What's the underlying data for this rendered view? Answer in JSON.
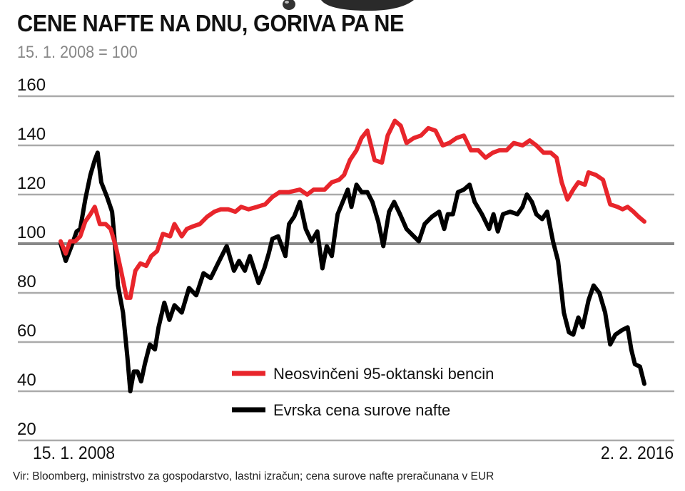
{
  "header": {
    "title": "CENE NAFTE NA DNU, GORIVA PA NE",
    "subtitle": "15. 1. 2008 = 100"
  },
  "footer": {
    "source": "Vir: Bloomberg, ministrstvo za gospodarstvo, lastni izračun; cena surove nafte preračunana v EUR"
  },
  "chart_data": {
    "type": "line",
    "title": "CENE NAFTE NA DNU, GORIVA PA NE",
    "subtitle": "15. 1. 2008 = 100",
    "x_tick_labels": [
      "15. 1. 2008",
      "2. 2. 2016"
    ],
    "xlim": [
      2008.04,
      2016.09
    ],
    "ylim": [
      20,
      160
    ],
    "y_ticks": [
      20,
      40,
      60,
      80,
      100,
      120,
      140,
      160
    ],
    "grid": "horizontal",
    "legend_placement": "bottom-center",
    "series": [
      {
        "name": "Neosvinčeni 95-oktanski bencin",
        "color": "#e8252b",
        "x": [
          2008.04,
          2008.11,
          2008.17,
          2008.24,
          2008.31,
          2008.38,
          2008.45,
          2008.51,
          2008.58,
          2008.66,
          2008.73,
          2008.8,
          2008.88,
          2008.95,
          2009.0,
          2009.07,
          2009.14,
          2009.22,
          2009.29,
          2009.37,
          2009.45,
          2009.55,
          2009.61,
          2009.71,
          2009.78,
          2009.86,
          2009.96,
          2010.06,
          2010.16,
          2010.25,
          2010.35,
          2010.45,
          2010.53,
          2010.63,
          2010.75,
          2010.86,
          2010.96,
          2011.06,
          2011.19,
          2011.34,
          2011.44,
          2011.53,
          2011.68,
          2011.78,
          2011.88,
          2011.95,
          2012.03,
          2012.12,
          2012.19,
          2012.27,
          2012.37,
          2012.47,
          2012.55,
          2012.65,
          2012.73,
          2012.81,
          2012.91,
          2013.01,
          2013.11,
          2013.21,
          2013.31,
          2013.4,
          2013.5,
          2013.6,
          2013.7,
          2013.8,
          2013.9,
          2014.0,
          2014.09,
          2014.19,
          2014.29,
          2014.41,
          2014.51,
          2014.6,
          2014.7,
          2014.8,
          2014.88,
          2014.95,
          2015.03,
          2015.11,
          2015.18,
          2015.27,
          2015.32,
          2015.42,
          2015.52,
          2015.62,
          2015.72,
          2015.79,
          2015.86,
          2015.94,
          2016.01,
          2016.09
        ],
        "values": [
          101,
          96,
          101,
          101,
          103,
          109,
          112,
          115,
          108,
          108,
          106,
          99,
          88,
          78,
          78,
          89,
          92,
          91,
          95,
          97,
          104,
          103,
          108,
          103,
          106,
          107,
          108,
          111,
          113,
          114,
          114,
          113,
          115,
          114,
          115,
          116,
          119,
          121,
          121,
          122,
          120,
          122,
          122,
          125,
          126,
          128,
          134,
          138,
          143,
          146,
          134,
          133,
          144,
          150,
          148,
          141,
          143,
          144,
          147,
          146,
          140,
          141,
          143,
          144,
          138,
          138,
          135,
          137,
          138,
          138,
          141,
          140,
          142,
          140,
          137,
          137,
          135,
          125,
          118,
          122,
          125,
          124,
          129,
          128,
          126,
          116,
          115,
          114,
          115,
          113,
          111,
          109
        ]
      },
      {
        "name": "Evrska cena surove nafte",
        "color": "#000000",
        "x": [
          2008.04,
          2008.11,
          2008.19,
          2008.26,
          2008.31,
          2008.38,
          2008.45,
          2008.51,
          2008.55,
          2008.6,
          2008.68,
          2008.75,
          2008.78,
          2008.83,
          2008.9,
          2008.96,
          2009.0,
          2009.05,
          2009.1,
          2009.15,
          2009.2,
          2009.27,
          2009.34,
          2009.39,
          2009.47,
          2009.54,
          2009.61,
          2009.71,
          2009.81,
          2009.91,
          2010.01,
          2010.11,
          2010.21,
          2010.33,
          2010.43,
          2010.5,
          2010.58,
          2010.65,
          2010.77,
          2010.85,
          2010.91,
          2010.96,
          2011.04,
          2011.14,
          2011.19,
          2011.26,
          2011.34,
          2011.42,
          2011.5,
          2011.58,
          2011.65,
          2011.71,
          2011.78,
          2011.86,
          2011.93,
          2012.0,
          2012.05,
          2012.12,
          2012.19,
          2012.27,
          2012.34,
          2012.42,
          2012.49,
          2012.57,
          2012.64,
          2012.72,
          2012.81,
          2012.91,
          2012.98,
          2013.06,
          2013.16,
          2013.26,
          2013.33,
          2013.38,
          2013.45,
          2013.52,
          2013.6,
          2013.68,
          2013.75,
          2013.85,
          2013.95,
          2014.01,
          2014.07,
          2014.14,
          2014.24,
          2014.34,
          2014.41,
          2014.47,
          2014.54,
          2014.6,
          2014.68,
          2014.75,
          2014.83,
          2014.9,
          2014.98,
          2015.05,
          2015.11,
          2015.18,
          2015.24,
          2015.32,
          2015.39,
          2015.47,
          2015.55,
          2015.62,
          2015.69,
          2015.79,
          2015.86,
          2015.91,
          2015.96,
          2016.03,
          2016.09
        ],
        "values": [
          100,
          93,
          99,
          105,
          106,
          118,
          128,
          134,
          137,
          125,
          119,
          113,
          103,
          83,
          72,
          54,
          40,
          48,
          48,
          44,
          51,
          59,
          57,
          66,
          76,
          69,
          75,
          72,
          82,
          79,
          88,
          86,
          92,
          99,
          89,
          93,
          89,
          95,
          84,
          90,
          96,
          102,
          103,
          95,
          108,
          111,
          117,
          106,
          101,
          105,
          90,
          99,
          95,
          112,
          117,
          122,
          115,
          124,
          121,
          121,
          117,
          109,
          99,
          113,
          117,
          112,
          106,
          103,
          101,
          108,
          111,
          113,
          106,
          112,
          112,
          121,
          122,
          124,
          117,
          112,
          106,
          112,
          105,
          112,
          113,
          112,
          115,
          120,
          117,
          112,
          110,
          113,
          101,
          93,
          72,
          64,
          63,
          70,
          66,
          77,
          83,
          80,
          72,
          59,
          63,
          65,
          66,
          57,
          51,
          50,
          43
        ]
      }
    ]
  }
}
